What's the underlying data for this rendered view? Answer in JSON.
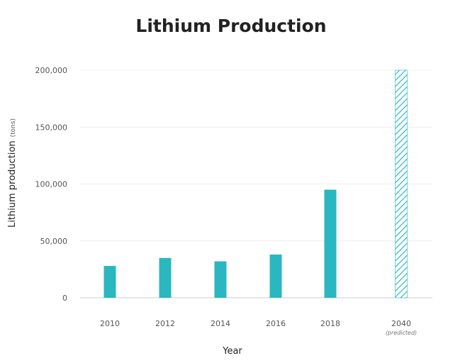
{
  "chart_data": {
    "type": "bar",
    "title": "Lithium Production",
    "xlabel": "Year",
    "ylabel": "Lithium production",
    "ylabel_unit": "(tons)",
    "categories": [
      "2010",
      "2012",
      "2014",
      "2016",
      "2018",
      "2040"
    ],
    "category_notes": [
      "",
      "",
      "",
      "",
      "",
      "(predicted)"
    ],
    "values": [
      28000,
      35000,
      32000,
      38000,
      95000,
      200000
    ],
    "predicted": [
      false,
      false,
      false,
      false,
      false,
      true
    ],
    "ylim": [
      0,
      200000
    ],
    "yticks": [
      0,
      50000,
      100000,
      150000,
      200000
    ],
    "ytick_labels": [
      "0",
      "50,000",
      "100,000",
      "150,000",
      "200,000"
    ],
    "grid": true,
    "legend": "none",
    "colors": {
      "bar": "#2ab7c0",
      "grid": "#ececec",
      "axis": "#cccccc"
    }
  }
}
